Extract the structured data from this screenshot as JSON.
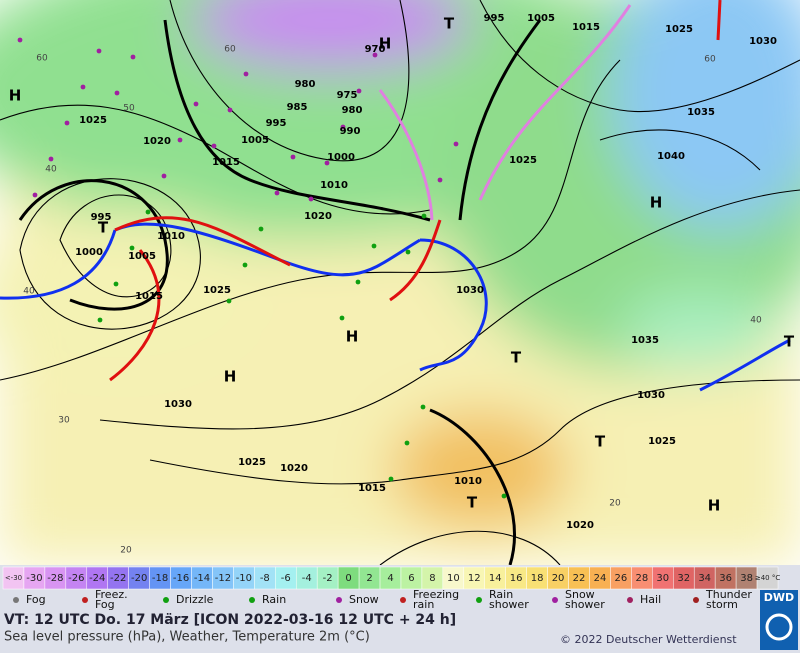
{
  "map": {
    "pressure_labels": [
      "995",
      "1005",
      "1015",
      "1025",
      "1030",
      "1025",
      "1020",
      "985",
      "975",
      "980",
      "990",
      "995",
      "1005",
      "1015",
      "1000",
      "1010",
      "1020",
      "1025",
      "1035",
      "1040",
      "995",
      "1010",
      "1000",
      "1005",
      "1015",
      "1025",
      "1030",
      "1035",
      "1030",
      "1030",
      "1025",
      "1020",
      "1025",
      "1015",
      "1010",
      "1020",
      "980",
      "970"
    ],
    "centers": [
      "H",
      "T",
      "H",
      "H",
      "H",
      "H",
      "T",
      "T",
      "T",
      "H",
      "T",
      "T"
    ],
    "temperature_labels": [
      "60",
      "60",
      "50",
      "40",
      "40",
      "30",
      "20",
      "20",
      "40",
      "60"
    ]
  },
  "scale": [
    {
      "label": "<-30",
      "color": "#f2c4f2"
    },
    {
      "label": "-30",
      "color": "#e6a6f2"
    },
    {
      "label": "-28",
      "color": "#d894f2"
    },
    {
      "label": "-26",
      "color": "#c484f2"
    },
    {
      "label": "-24",
      "color": "#b076f2"
    },
    {
      "label": "-22",
      "color": "#9474f0"
    },
    {
      "label": "-20",
      "color": "#7482f0"
    },
    {
      "label": "-18",
      "color": "#6494f4"
    },
    {
      "label": "-16",
      "color": "#66a6f8"
    },
    {
      "label": "-14",
      "color": "#74b6f8"
    },
    {
      "label": "-12",
      "color": "#84c4f8"
    },
    {
      "label": "-10",
      "color": "#94d4f8"
    },
    {
      "label": "-8",
      "color": "#a2e2f6"
    },
    {
      "label": "-6",
      "color": "#a4f0f0"
    },
    {
      "label": "-4",
      "color": "#a4f0de"
    },
    {
      "label": "-2",
      "color": "#a4f0c4"
    },
    {
      "label": "0",
      "color": "#7edc7e"
    },
    {
      "label": "2",
      "color": "#92e692"
    },
    {
      "label": "4",
      "color": "#a6ee9c"
    },
    {
      "label": "6",
      "color": "#bcf2a2"
    },
    {
      "label": "8",
      "color": "#d4f4aa"
    },
    {
      "label": "10",
      "color": "#f8f8cc"
    },
    {
      "label": "12",
      "color": "#f8f6b4"
    },
    {
      "label": "14",
      "color": "#f8f09c"
    },
    {
      "label": "16",
      "color": "#f8e886"
    },
    {
      "label": "18",
      "color": "#f8e074"
    },
    {
      "label": "20",
      "color": "#f8d064"
    },
    {
      "label": "22",
      "color": "#f8c054"
    },
    {
      "label": "24",
      "color": "#f8b052"
    },
    {
      "label": "26",
      "color": "#f8a062"
    },
    {
      "label": "28",
      "color": "#f88e72"
    },
    {
      "label": "30",
      "color": "#f07272"
    },
    {
      "label": "32",
      "color": "#e06464"
    },
    {
      "label": "34",
      "color": "#d06462"
    },
    {
      "label": "36",
      "color": "#c07262"
    },
    {
      "label": "38",
      "color": "#b08272"
    },
    {
      "label": "≥40 °C",
      "color": "#d4d4d4"
    }
  ],
  "legend": [
    {
      "lines": [
        "Fog"
      ]
    },
    {
      "lines": [
        "Freez.",
        "Fog"
      ]
    },
    {
      "lines": [
        "Drizzle"
      ]
    },
    {
      "lines": [
        "Rain"
      ]
    },
    {
      "lines": [
        "Snow"
      ]
    },
    {
      "lines": [
        "Freezing",
        "rain"
      ]
    },
    {
      "lines": [
        "Rain",
        "shower"
      ]
    },
    {
      "lines": [
        "Snow",
        "shower"
      ]
    },
    {
      "lines": [
        "Hail"
      ]
    },
    {
      "lines": [
        "Thunder",
        "storm"
      ]
    }
  ],
  "footer": {
    "valid_time": "VT: 12 UTC Do.  17 März [ICON 2022-03-16  12 UTC + 24 h]",
    "description": "Sea level pressure (hPa), Weather, Temperature 2m (°C)",
    "copyright": "© 2022 Deutscher Wetterdienst",
    "logo": "DWD"
  }
}
